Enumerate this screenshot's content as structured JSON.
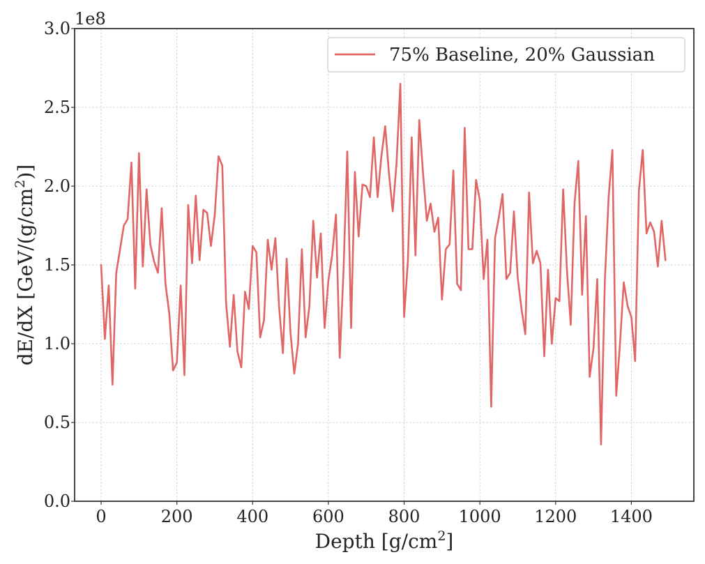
{
  "chart_data": {
    "type": "line",
    "xlabel": "Depth [g/cm",
    "xlabel_sup": "2",
    "xlabel_end": "]",
    "ylabel": "dE/dX [GeV/(g/cm",
    "ylabel_sup": "2",
    "ylabel_end": ")]",
    "y_multiplier": "1e8",
    "xlim": [
      -70,
      1565
    ],
    "ylim": [
      0,
      3.0
    ],
    "xticks": [
      0,
      200,
      400,
      600,
      800,
      1000,
      1200,
      1400
    ],
    "xtick_labels": [
      "0",
      "200",
      "400",
      "600",
      "800",
      "1000",
      "1200",
      "1400"
    ],
    "yticks": [
      0,
      0.5,
      1.0,
      1.5,
      2.0,
      2.5,
      3.0
    ],
    "ytick_labels": [
      "0.0",
      "0.5",
      "1.0",
      "1.5",
      "2.0",
      "2.5",
      "3.0"
    ],
    "grid": true,
    "legend_position": "top-right",
    "series": [
      {
        "name": "75% Baseline, 20% Gaussian",
        "color": "#e06666",
        "x": [
          0,
          10,
          20,
          30,
          40,
          50,
          60,
          70,
          80,
          90,
          100,
          110,
          120,
          130,
          140,
          150,
          160,
          170,
          180,
          190,
          200,
          210,
          220,
          230,
          240,
          250,
          260,
          270,
          280,
          290,
          300,
          310,
          320,
          330,
          340,
          350,
          360,
          370,
          380,
          390,
          400,
          410,
          420,
          430,
          440,
          450,
          460,
          470,
          480,
          490,
          500,
          510,
          520,
          530,
          540,
          550,
          560,
          570,
          580,
          590,
          600,
          610,
          620,
          630,
          640,
          650,
          660,
          670,
          680,
          690,
          700,
          710,
          720,
          730,
          740,
          750,
          760,
          770,
          780,
          790,
          800,
          810,
          820,
          830,
          840,
          850,
          860,
          870,
          880,
          890,
          900,
          910,
          920,
          930,
          940,
          950,
          960,
          970,
          980,
          990,
          1000,
          1010,
          1020,
          1030,
          1040,
          1050,
          1060,
          1070,
          1080,
          1090,
          1100,
          1110,
          1120,
          1130,
          1140,
          1150,
          1160,
          1170,
          1180,
          1190,
          1200,
          1210,
          1220,
          1230,
          1240,
          1250,
          1260,
          1270,
          1280,
          1290,
          1300,
          1310,
          1320,
          1330,
          1340,
          1350,
          1360,
          1370,
          1380,
          1390,
          1400,
          1410,
          1420,
          1430,
          1440,
          1450,
          1460,
          1470,
          1480,
          1490
        ],
        "values": [
          1.5,
          1.03,
          1.37,
          0.74,
          1.45,
          1.6,
          1.75,
          1.79,
          2.15,
          1.35,
          2.21,
          1.49,
          1.98,
          1.63,
          1.52,
          1.45,
          1.86,
          1.38,
          1.19,
          0.83,
          0.88,
          1.37,
          0.8,
          1.88,
          1.51,
          1.94,
          1.53,
          1.85,
          1.83,
          1.62,
          1.82,
          2.19,
          2.13,
          1.26,
          0.98,
          1.31,
          0.95,
          0.85,
          1.33,
          1.22,
          1.62,
          1.58,
          1.04,
          1.15,
          1.66,
          1.47,
          1.67,
          1.23,
          0.94,
          1.54,
          1.07,
          0.81,
          1.0,
          1.6,
          1.04,
          1.24,
          1.78,
          1.42,
          1.7,
          1.1,
          1.4,
          1.56,
          1.82,
          0.91,
          1.46,
          2.22,
          1.1,
          2.09,
          1.68,
          2.01,
          2.0,
          1.93,
          2.31,
          1.93,
          2.19,
          2.38,
          2.08,
          1.84,
          2.15,
          2.65,
          1.17,
          1.52,
          2.31,
          1.56,
          2.42,
          2.08,
          1.78,
          1.89,
          1.71,
          1.8,
          1.28,
          1.6,
          1.63,
          2.1,
          1.38,
          1.34,
          2.37,
          1.6,
          1.6,
          2.04,
          1.91,
          1.41,
          1.66,
          0.6,
          1.67,
          1.8,
          1.95,
          1.41,
          1.45,
          1.84,
          1.42,
          1.22,
          1.06,
          1.96,
          1.51,
          1.59,
          1.51,
          0.92,
          1.47,
          1.0,
          1.29,
          1.27,
          1.98,
          1.46,
          1.12,
          1.89,
          2.16,
          1.31,
          1.81,
          0.79,
          0.97,
          1.41,
          0.36,
          1.4,
          1.93,
          2.23,
          0.67,
          1.0,
          1.39,
          1.24,
          1.17,
          0.89,
          1.97,
          2.23,
          1.7,
          1.77,
          1.71,
          1.49,
          1.78,
          1.53
        ]
      }
    ]
  }
}
